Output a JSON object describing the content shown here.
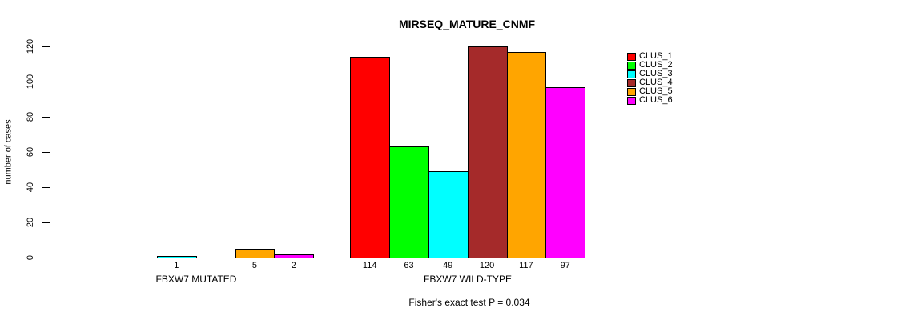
{
  "chart_data": {
    "type": "bar",
    "title": "MIRSEQ_MATURE_CNMF",
    "ylabel": "number of cases",
    "xlabel": "",
    "ylim": [
      0,
      120
    ],
    "yticks": [
      0,
      20,
      40,
      60,
      80,
      100,
      120
    ],
    "grid": false,
    "legend_position": "right",
    "categories": [
      "FBXW7 MUTATED",
      "FBXW7 WILD-TYPE"
    ],
    "series": [
      {
        "name": "CLUS_1",
        "color": "#FF0000",
        "values": [
          0,
          114
        ]
      },
      {
        "name": "CLUS_2",
        "color": "#00FF00",
        "values": [
          0,
          63
        ]
      },
      {
        "name": "CLUS_3",
        "color": "#00FFFF",
        "values": [
          1,
          49
        ]
      },
      {
        "name": "CLUS_4",
        "color": "#A52A2A",
        "values": [
          0,
          120
        ]
      },
      {
        "name": "CLUS_5",
        "color": "#FFA500",
        "values": [
          5,
          117
        ]
      },
      {
        "name": "CLUS_6",
        "color": "#FF00FF",
        "values": [
          2,
          97
        ]
      }
    ],
    "bar_value_labels": [
      [
        "",
        "",
        "1",
        "",
        "5",
        "2"
      ],
      [
        "114",
        "63",
        "49",
        "120",
        "117",
        "97"
      ]
    ],
    "annotation": "Fisher's exact test P = 0.034",
    "axis_color": "#000000",
    "background_color": "#FFFFFF"
  }
}
